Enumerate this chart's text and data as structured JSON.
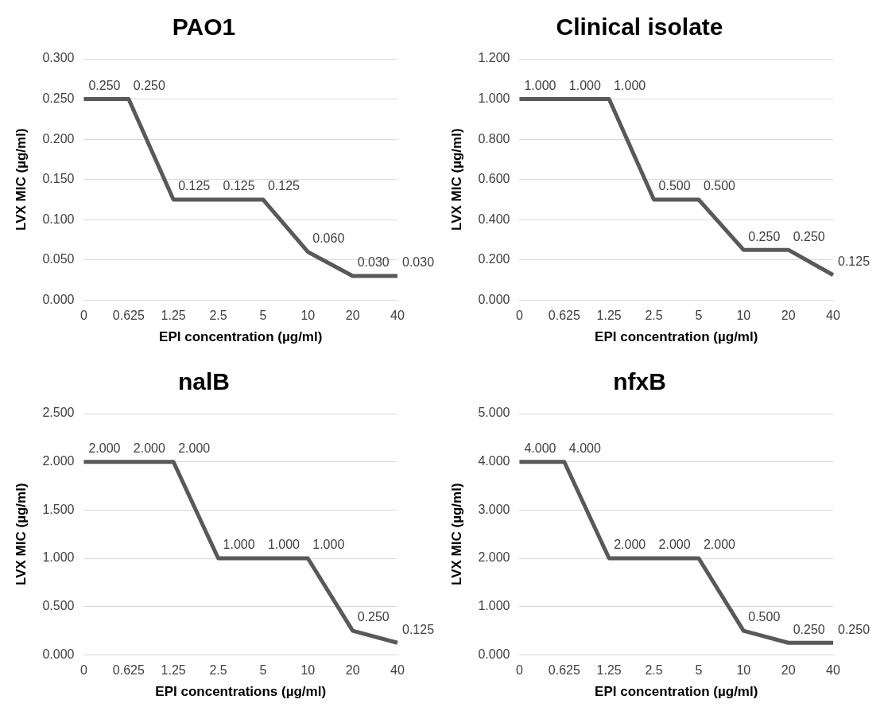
{
  "chart_data": [
    {
      "type": "line",
      "title": "PAO1",
      "xlabel": "EPI concentration (µg/ml)",
      "ylabel": "LVX MIC (µg/ml)",
      "categories": [
        "0",
        "0.625",
        "1.25",
        "2.5",
        "5",
        "10",
        "20",
        "40"
      ],
      "values": [
        0.25,
        0.25,
        0.125,
        0.125,
        0.125,
        0.06,
        0.03,
        0.03
      ],
      "value_labels": [
        "0.250",
        "0.250",
        "0.125",
        "0.125",
        "0.125",
        "0.060",
        "0.030",
        "0.030"
      ],
      "color": "#595959",
      "ylim": [
        0,
        0.3
      ],
      "yticks": [
        {
          "value": 0,
          "label": "0.000"
        },
        {
          "value": 0.05,
          "label": "0.050"
        },
        {
          "value": 0.1,
          "label": "0.100"
        },
        {
          "value": 0.15,
          "label": "0.150"
        },
        {
          "value": 0.2,
          "label": "0.200"
        },
        {
          "value": 0.25,
          "label": "0.250"
        },
        {
          "value": 0.3,
          "label": "0.300"
        }
      ],
      "grid": "y",
      "legend": false
    },
    {
      "type": "line",
      "title": "Clinical isolate",
      "xlabel": "EPI concentration (µg/ml)",
      "ylabel": "LVX MIC (µg/ml)",
      "categories": [
        "0",
        "0.625",
        "1.25",
        "2.5",
        "5",
        "10",
        "20",
        "40"
      ],
      "values": [
        1,
        1,
        1,
        0.5,
        0.5,
        0.25,
        0.25,
        0.125
      ],
      "value_labels": [
        "1.000",
        "1.000",
        "1.000",
        "0.500",
        "0.500",
        "0.250",
        "0.250",
        "0.125"
      ],
      "color": "#595959",
      "ylim": [
        0,
        1.2
      ],
      "yticks": [
        {
          "value": 0,
          "label": "0.000"
        },
        {
          "value": 0.2,
          "label": "0.200"
        },
        {
          "value": 0.4,
          "label": "0.400"
        },
        {
          "value": 0.6,
          "label": "0.600"
        },
        {
          "value": 0.8,
          "label": "0.800"
        },
        {
          "value": 1,
          "label": "1.000"
        },
        {
          "value": 1.2,
          "label": "1.200"
        }
      ],
      "grid": "y",
      "legend": false
    },
    {
      "type": "line",
      "title": "nalB",
      "xlabel": "EPI concentrations (µg/ml)",
      "ylabel": "LVX MIC (µg/ml)",
      "categories": [
        "0",
        "0.625",
        "1.25",
        "2.5",
        "5",
        "10",
        "20",
        "40"
      ],
      "values": [
        2,
        2,
        2,
        1,
        1,
        1,
        0.25,
        0.125
      ],
      "value_labels": [
        "2.000",
        "2.000",
        "2.000",
        "1.000",
        "1.000",
        "1.000",
        "0.250",
        "0.125"
      ],
      "color": "#595959",
      "ylim": [
        0,
        2.5
      ],
      "yticks": [
        {
          "value": 0,
          "label": "0.000"
        },
        {
          "value": 0.5,
          "label": "0.500"
        },
        {
          "value": 1,
          "label": "1.000"
        },
        {
          "value": 1.5,
          "label": "1.500"
        },
        {
          "value": 2,
          "label": "2.000"
        },
        {
          "value": 2.5,
          "label": "2.500"
        }
      ],
      "grid": "y",
      "legend": false
    },
    {
      "type": "line",
      "title": "nfxB",
      "xlabel": "EPI concentration (µg/ml)",
      "ylabel": "LVX MIC (µg/ml)",
      "categories": [
        "0",
        "0.625",
        "1.25",
        "2.5",
        "5",
        "10",
        "20",
        "40"
      ],
      "values": [
        4,
        4,
        2,
        2,
        2,
        0.5,
        0.25,
        0.25
      ],
      "value_labels": [
        "4.000",
        "4.000",
        "2.000",
        "2.000",
        "2.000",
        "0.500",
        "0.250",
        "0.250"
      ],
      "color": "#595959",
      "ylim": [
        0,
        5
      ],
      "yticks": [
        {
          "value": 0,
          "label": "0.000"
        },
        {
          "value": 1,
          "label": "1.000"
        },
        {
          "value": 2,
          "label": "2.000"
        },
        {
          "value": 3,
          "label": "3.000"
        },
        {
          "value": 4,
          "label": "4.000"
        },
        {
          "value": 5,
          "label": "5.000"
        }
      ],
      "grid": "y",
      "legend": false
    }
  ]
}
